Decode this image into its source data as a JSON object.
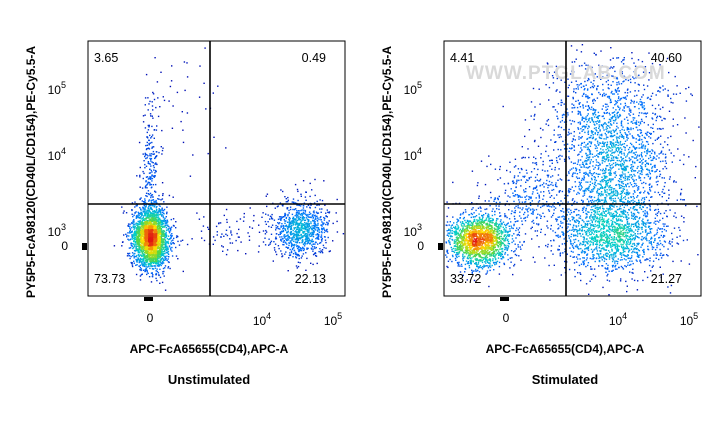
{
  "chart_data": [
    {
      "type": "scatter",
      "title": "Unstimulated",
      "xlabel": "APC-FcA65655(CD4),APC-A",
      "ylabel": "PY5P5-FcA98120(CD40L/CD154),PE-Cy5.5-A",
      "x_scale": "biexponential",
      "y_scale": "biexponential",
      "x_ticks": [
        {
          "value": 0,
          "label": "0"
        },
        {
          "value": 10000,
          "label": "10^4"
        },
        {
          "value": 100000,
          "label": "10^5"
        }
      ],
      "y_ticks": [
        {
          "value": 0,
          "label": "0"
        },
        {
          "value": 1000,
          "label": "10^3"
        },
        {
          "value": 10000,
          "label": "10^4"
        },
        {
          "value": 100000,
          "label": "10^5"
        }
      ],
      "gate": {
        "x": 3500,
        "y": 1500
      },
      "quadrants": [
        {
          "position": "top-left",
          "label": "3.65",
          "percent": 3.65
        },
        {
          "position": "top-right",
          "label": "0.49",
          "percent": 0.49
        },
        {
          "position": "bottom-left",
          "label": "73.73",
          "percent": 73.73
        },
        {
          "position": "bottom-right",
          "label": "22.13",
          "percent": 22.13
        }
      ],
      "grid": false
    },
    {
      "type": "scatter",
      "title": "Stimulated",
      "xlabel": "APC-FcA65655(CD4),APC-A",
      "ylabel": "PY5P5-FcA98120(CD40L/CD154),PE-Cy5.5-A",
      "x_scale": "biexponential",
      "y_scale": "biexponential",
      "x_ticks": [
        {
          "value": 0,
          "label": "0"
        },
        {
          "value": 10000,
          "label": "10^4"
        },
        {
          "value": 100000,
          "label": "10^5"
        }
      ],
      "y_ticks": [
        {
          "value": 0,
          "label": "0"
        },
        {
          "value": 1000,
          "label": "10^3"
        },
        {
          "value": 10000,
          "label": "10^4"
        },
        {
          "value": 100000,
          "label": "10^5"
        }
      ],
      "gate": {
        "x": 3500,
        "y": 1500
      },
      "quadrants": [
        {
          "position": "top-left",
          "label": "4.41",
          "percent": 4.41
        },
        {
          "position": "top-right",
          "label": "40.60",
          "percent": 40.6
        },
        {
          "position": "bottom-left",
          "label": "33.72",
          "percent": 33.72
        },
        {
          "position": "bottom-right",
          "label": "21.27",
          "percent": 21.27
        }
      ],
      "watermark": "WWW.PTGLAB.COM",
      "grid": false
    }
  ]
}
